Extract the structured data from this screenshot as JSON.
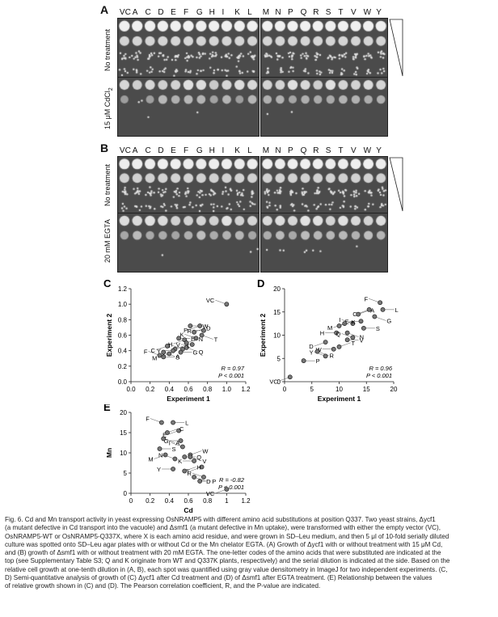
{
  "panelA": {
    "label": "A",
    "columns_left": [
      "VC",
      "A",
      "C",
      "D",
      "E",
      "F",
      "G",
      "H",
      "I",
      "K",
      "L"
    ],
    "columns_right": [
      "M",
      "N",
      "P",
      "Q",
      "R",
      "S",
      "T",
      "V",
      "W",
      "Y"
    ],
    "row1": "No treatment",
    "row2": "15 μM CdCl",
    "row2_sub": "2"
  },
  "panelB": {
    "label": "B",
    "columns_left": [
      "VC",
      "A",
      "C",
      "D",
      "E",
      "F",
      "G",
      "H",
      "I",
      "K",
      "L"
    ],
    "columns_right": [
      "M",
      "N",
      "P",
      "Q",
      "R",
      "S",
      "T",
      "V",
      "W",
      "Y"
    ],
    "row1": "No treatment",
    "row2": "20 mM EGTA"
  },
  "chart_data": [
    {
      "panel": "C",
      "type": "scatter",
      "xlabel": "Experiment 1",
      "ylabel": "Experiment 2",
      "xlim": [
        0,
        1.2
      ],
      "ylim": [
        0,
        1.2
      ],
      "xticks": [
        "0.0",
        "0.2",
        "0.4",
        "0.6",
        "0.8",
        "1.0",
        "1.2"
      ],
      "yticks": [
        "0.0",
        "0.2",
        "0.4",
        "0.6",
        "0.8",
        "1.0",
        "1.2"
      ],
      "stats": [
        "R = 0.97",
        "P < 0.001"
      ],
      "points": [
        {
          "label": "VC",
          "x": 1.0,
          "y": 1.0
        },
        {
          "label": "W",
          "x": 0.62,
          "y": 0.72
        },
        {
          "label": "P",
          "x": 0.72,
          "y": 0.72
        },
        {
          "label": "D",
          "x": 0.66,
          "y": 0.64
        },
        {
          "label": "R",
          "x": 0.76,
          "y": 0.66
        },
        {
          "label": "T",
          "x": 0.74,
          "y": 0.6
        },
        {
          "label": "K",
          "x": 0.68,
          "y": 0.56
        },
        {
          "label": "E",
          "x": 0.5,
          "y": 0.56
        },
        {
          "label": "H",
          "x": 0.56,
          "y": 0.54
        },
        {
          "label": "N",
          "x": 0.58,
          "y": 0.5
        },
        {
          "label": "V",
          "x": 0.64,
          "y": 0.48
        },
        {
          "label": "Q",
          "x": 0.58,
          "y": 0.44
        },
        {
          "label": "I",
          "x": 0.54,
          "y": 0.42
        },
        {
          "label": "G",
          "x": 0.52,
          "y": 0.38
        },
        {
          "label": "C",
          "x": 0.38,
          "y": 0.46
        },
        {
          "label": "L",
          "x": 0.46,
          "y": 0.42
        },
        {
          "label": "Y",
          "x": 0.44,
          "y": 0.4
        },
        {
          "label": "A",
          "x": 0.34,
          "y": 0.38
        },
        {
          "label": "F",
          "x": 0.3,
          "y": 0.34
        },
        {
          "label": "S",
          "x": 0.34,
          "y": 0.32
        },
        {
          "label": "M",
          "x": 0.4,
          "y": 0.36
        }
      ]
    },
    {
      "panel": "D",
      "type": "scatter",
      "xlabel": "Experiment 1",
      "ylabel": "Experiment 2",
      "xlim": [
        0,
        20
      ],
      "ylim": [
        0,
        20
      ],
      "xticks": [
        "0",
        "5",
        "10",
        "15",
        "20"
      ],
      "yticks": [
        "0",
        "5",
        "10",
        "15",
        "20"
      ],
      "stats": [
        "R = 0.96",
        "P < 0.001"
      ],
      "points": [
        {
          "label": "F",
          "x": 17.5,
          "y": 17.0
        },
        {
          "label": "L",
          "x": 18.0,
          "y": 15.5
        },
        {
          "label": "C",
          "x": 15.5,
          "y": 15.5
        },
        {
          "label": "A",
          "x": 13.5,
          "y": 14.5
        },
        {
          "label": "E",
          "x": 14.0,
          "y": 13.0
        },
        {
          "label": "G",
          "x": 16.5,
          "y": 14.0
        },
        {
          "label": "I",
          "x": 12.5,
          "y": 12.5
        },
        {
          "label": "S",
          "x": 14.5,
          "y": 11.5
        },
        {
          "label": "M",
          "x": 11.0,
          "y": 12.5
        },
        {
          "label": "K",
          "x": 10.0,
          "y": 12.0
        },
        {
          "label": "H",
          "x": 9.5,
          "y": 10.5
        },
        {
          "label": "N",
          "x": 11.5,
          "y": 10.5
        },
        {
          "label": "Q",
          "x": 12.5,
          "y": 9.5
        },
        {
          "label": "V",
          "x": 11.5,
          "y": 9.0
        },
        {
          "label": "D",
          "x": 7.5,
          "y": 8.5
        },
        {
          "label": "T",
          "x": 10.0,
          "y": 7.5
        },
        {
          "label": "W",
          "x": 9.0,
          "y": 7.0
        },
        {
          "label": "R",
          "x": 6.0,
          "y": 6.5
        },
        {
          "label": "Y",
          "x": 7.5,
          "y": 5.5
        },
        {
          "label": "P",
          "x": 3.5,
          "y": 4.5
        },
        {
          "label": "VC",
          "x": 1.0,
          "y": 1.0
        }
      ]
    },
    {
      "panel": "E",
      "type": "scatter",
      "xlabel": "Cd",
      "ylabel": "Mn",
      "xlim": [
        0,
        1.2
      ],
      "ylim": [
        0,
        20
      ],
      "xticks": [
        "0",
        "0.2",
        "0.4",
        "0.6",
        "0.8",
        "1",
        "1.2"
      ],
      "yticks": [
        "0",
        "5",
        "10",
        "15",
        "20"
      ],
      "stats": [
        "R = -0.82",
        "P < 0.001"
      ],
      "points": [
        {
          "label": "F",
          "x": 0.32,
          "y": 17.5
        },
        {
          "label": "L",
          "x": 0.44,
          "y": 17.5
        },
        {
          "label": "E",
          "x": 0.5,
          "y": 15.5
        },
        {
          "label": "C",
          "x": 0.38,
          "y": 15.0
        },
        {
          "label": "G",
          "x": 0.52,
          "y": 13.0
        },
        {
          "label": "A",
          "x": 0.34,
          "y": 13.5
        },
        {
          "label": "I",
          "x": 0.54,
          "y": 11.5
        },
        {
          "label": "S",
          "x": 0.3,
          "y": 11.0
        },
        {
          "label": "M",
          "x": 0.36,
          "y": 9.5
        },
        {
          "label": "W",
          "x": 0.62,
          "y": 9.5
        },
        {
          "label": "K",
          "x": 0.66,
          "y": 8.0
        },
        {
          "label": "V",
          "x": 0.62,
          "y": 9.0
        },
        {
          "label": "N",
          "x": 0.46,
          "y": 8.5
        },
        {
          "label": "Q",
          "x": 0.56,
          "y": 9.0
        },
        {
          "label": "T",
          "x": 0.74,
          "y": 6.5
        },
        {
          "label": "H",
          "x": 0.56,
          "y": 5.5
        },
        {
          "label": "Y",
          "x": 0.44,
          "y": 6.0
        },
        {
          "label": "D",
          "x": 0.66,
          "y": 4.0
        },
        {
          "label": "R",
          "x": 0.76,
          "y": 4.0
        },
        {
          "label": "P",
          "x": 0.72,
          "y": 3.0
        },
        {
          "label": "VC",
          "x": 1.0,
          "y": 1.0
        }
      ]
    }
  ],
  "caption": {
    "lines": [
      "Fig. 6. Cd and Mn transport activity in yeast expressing OsNRAMP5 with different amino acid substitutions at position Q337. Two yeast strains, Δycf1",
      "(a mutant defective in Cd transport into the vacuole) and Δsmf1 (a mutant defective in Mn uptake), were transformed with either the empty vector (VC),",
      "OsNRAMP5-WT or OsNRAMP5-Q337X, where X is each amino acid residue, and were grown in SD–Leu medium, and then 5 μl of 10-fold serially diluted",
      "culture was spotted onto SD–Leu agar plates with or without Cd or the Mn chelator EGTA. (A) Growth of Δycf1 with or without treatment with 15 μM Cd,",
      "and (B) growth of Δsmf1 with or without treatment with 20 mM EGTA. The one-letter codes of the amino acids that were substituted are indicated at the",
      "top (see Supplementary Table S3; Q and K originate from WT and Q337K plants, respectively) and the serial dilution is indicated at the side. Based on the",
      "relative cell growth at one-tenth dilution in (A, B), each spot was quantified using gray value densitometry in ImageJ for two independent experiments. (C,",
      "D) Semi-quantitative analysis of growth of (C) Δycf1 after Cd treatment and (D) of Δsmf1 after EGTA treatment. (E) Relationship between the values",
      "of relative growth shown in (C) and (D). The Pearson correlation coefficient, R, and the P-value are indicated."
    ]
  }
}
